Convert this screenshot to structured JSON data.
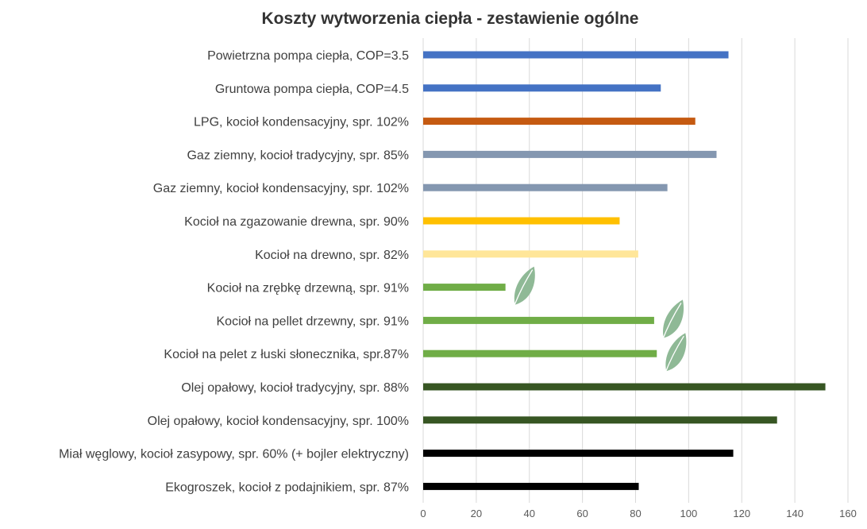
{
  "chart_data": {
    "type": "bar",
    "orientation": "horizontal",
    "title": "Koszty wytworzenia ciepła - zestawienie ogólne",
    "xlabel": "",
    "ylabel": "",
    "xlim": [
      0,
      160
    ],
    "x_ticks": [
      0,
      20,
      40,
      60,
      80,
      100,
      120,
      140,
      160
    ],
    "grid": "vertical",
    "legend": "none",
    "categories": [
      "Powietrzna pompa ciepła, COP=3.5",
      "Gruntowa pompa ciepła, COP=4.5",
      "LPG, kocioł kondensacyjny, spr. 102%",
      "Gaz ziemny, kocioł tradycyjny, spr. 85%",
      "Gaz ziemny, kocioł kondensacyjny, spr. 102%",
      "Kocioł na zgazowanie drewna, spr. 90%",
      "Kocioł na drewno, spr. 82%",
      "Kocioł na zrębkę drzewną, spr. 91%",
      "Kocioł na pellet drzewny, spr. 91%",
      "Kocioł na pelet z łuski słonecznika, spr.87%",
      "Olej opałowy, kocioł tradycyjny, spr. 88%",
      "Olej opałowy, kocioł kondensacyjny, spr. 100%",
      "Miał węglowy, kocioł zasypowy, spr. 60% (+ bojler elektryczny)",
      "Ekogroszek, kocioł z podajnikiem, spr. 87%"
    ],
    "values": [
      115,
      89.5,
      102.5,
      110.5,
      92,
      74,
      81,
      31,
      87,
      88,
      151.5,
      133.3,
      116.8,
      81.2
    ],
    "colors": [
      "#4472c4",
      "#4472c4",
      "#c55a11",
      "#8497b0",
      "#8497b0",
      "#ffc000",
      "#ffe699",
      "#70ad47",
      "#70ad47",
      "#70ad47",
      "#375623",
      "#375623",
      "#000000",
      "#000000"
    ],
    "leaf_markers": [
      7,
      8,
      9
    ]
  },
  "icons": {
    "eco_marker": "leaf-icon",
    "leaf_color": "#8fb996"
  },
  "colors": {
    "grid": "#d9d9d9",
    "tick_text": "#595959",
    "label_text": "#404040"
  }
}
